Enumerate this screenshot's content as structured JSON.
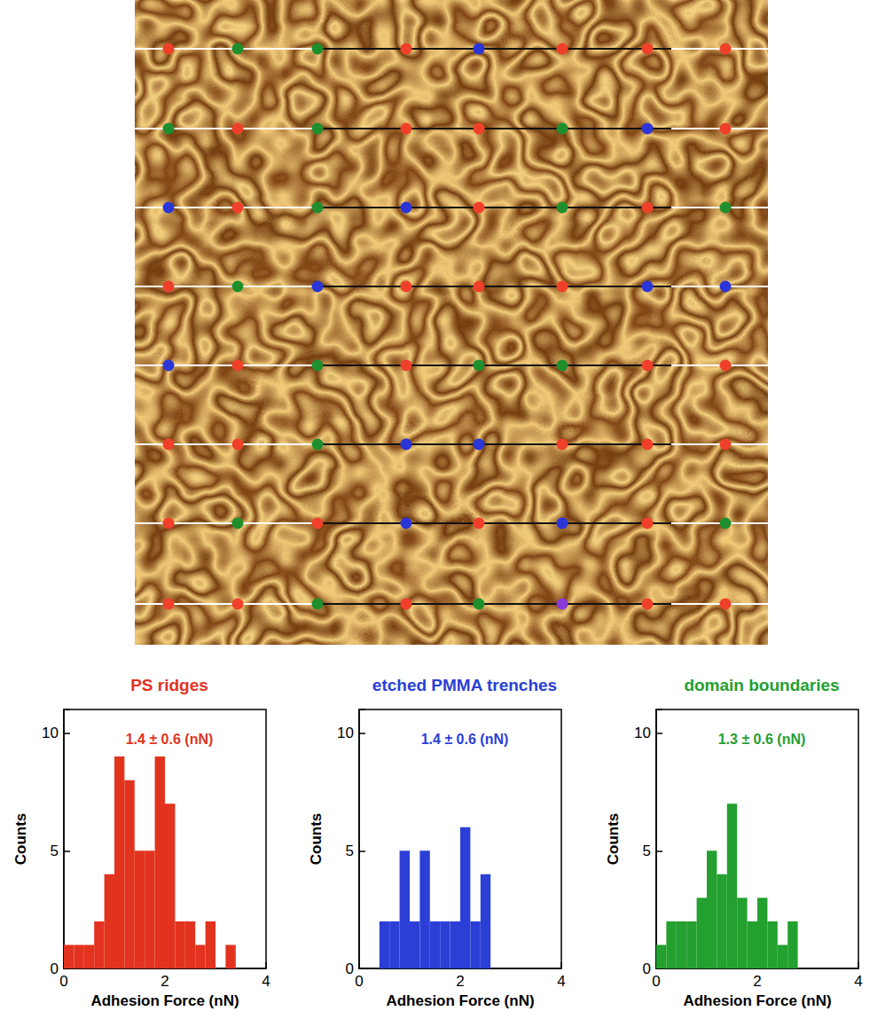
{
  "image": {
    "marker_rows": [
      [
        "#f0402a",
        "#1f8f2e",
        "#1f8f2e",
        "#f0402a",
        "#2a35d8",
        "#f0402a",
        "#f0402a",
        "#f0402a"
      ],
      [
        "#1f8f2e",
        "#f0402a",
        "#1f8f2e",
        "#f0402a",
        "#f0402a",
        "#1f8f2e",
        "#2a35d8",
        "#f0402a"
      ],
      [
        "#2a35d8",
        "#f0402a",
        "#1f8f2e",
        "#2a35d8",
        "#f0402a",
        "#1f8f2e",
        "#f0402a",
        "#1f8f2e"
      ],
      [
        "#f0402a",
        "#1f8f2e",
        "#2a35d8",
        "#f0402a",
        "#f0402a",
        "#f0402a",
        "#2a35d8",
        "#2a35d8"
      ],
      [
        "#2a35d8",
        "#f0402a",
        "#1f8f2e",
        "#f0402a",
        "#1f8f2e",
        "#1f8f2e",
        "#f0402a",
        "#f0402a"
      ],
      [
        "#f0402a",
        "#f0402a",
        "#1f8f2e",
        "#2a35d8",
        "#2a35d8",
        "#f0402a",
        "#f0402a",
        "#f0402a"
      ],
      [
        "#f0402a",
        "#1f8f2e",
        "#f0402a",
        "#2a35d8",
        "#f0402a",
        "#2a35d8",
        "#f0402a",
        "#1f8f2e"
      ],
      [
        "#f0402a",
        "#f0402a",
        "#1f8f2e",
        "#f0402a",
        "#1f8f2e",
        "#8a3ad8",
        "#f0402a",
        "#f0402a"
      ]
    ]
  },
  "chart_data": [
    {
      "type": "histogram",
      "title": "PS ridges",
      "annotation": "1.4 ± 0.6 (nN)",
      "color": "#e2331f",
      "bins": [
        0,
        0.2,
        0.4,
        0.6,
        0.8,
        1.0,
        1.2,
        1.4,
        1.6,
        1.8,
        2.0,
        2.2,
        2.4,
        2.6,
        2.8,
        3.0,
        3.2,
        3.4
      ],
      "counts": [
        1,
        1,
        1,
        2,
        4,
        9,
        8,
        5,
        5,
        9,
        7,
        2,
        2,
        1,
        2,
        0,
        1
      ],
      "xlabel": "Adhesion Force (nN)",
      "ylabel": "Counts",
      "xlim": [
        0,
        4
      ],
      "ylim": [
        0,
        11
      ],
      "xticks": [
        0,
        2,
        4
      ],
      "yticks": [
        0,
        5,
        10
      ]
    },
    {
      "type": "histogram",
      "title": "etched PMMA trenches",
      "annotation": "1.4 ± 0.6 (nN)",
      "color": "#2b3fd6",
      "bins": [
        0.4,
        0.6,
        0.8,
        1.0,
        1.2,
        1.4,
        1.6,
        1.8,
        2.0,
        2.2,
        2.4,
        2.6
      ],
      "counts": [
        2,
        2,
        5,
        2,
        5,
        2,
        2,
        2,
        6,
        2,
        4
      ],
      "xlabel": "Adhesion Force (nN)",
      "ylabel": "Counts",
      "xlim": [
        0,
        4
      ],
      "ylim": [
        0,
        11
      ],
      "xticks": [
        0,
        2,
        4
      ],
      "yticks": [
        0,
        5,
        10
      ]
    },
    {
      "type": "histogram",
      "title": "domain boundaries",
      "annotation": "1.3 ± 0.6 (nN)",
      "color": "#23a02f",
      "bins": [
        0,
        0.2,
        0.4,
        0.6,
        0.8,
        1.0,
        1.2,
        1.4,
        1.6,
        1.8,
        2.0,
        2.2,
        2.4,
        2.6,
        2.8
      ],
      "counts": [
        1,
        2,
        2,
        2,
        3,
        5,
        4,
        7,
        3,
        2,
        3,
        2,
        1,
        2
      ],
      "xlabel": "Adhesion Force (nN)",
      "ylabel": "Counts",
      "xlim": [
        0,
        4
      ],
      "ylim": [
        0,
        11
      ],
      "xticks": [
        0,
        2,
        4
      ],
      "yticks": [
        0,
        5,
        10
      ]
    }
  ]
}
